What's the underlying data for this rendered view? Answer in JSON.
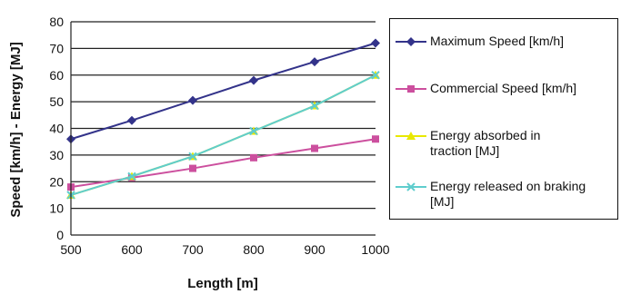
{
  "chart_data": {
    "type": "line",
    "x": [
      500,
      600,
      700,
      800,
      900,
      1000
    ],
    "series": [
      {
        "name": "Maximum Speed [km/h]",
        "values": [
          36,
          43,
          50.5,
          58,
          65,
          72
        ],
        "color": "#33338a",
        "marker": "diamond"
      },
      {
        "name": "Commercial Speed [km/h]",
        "values": [
          18,
          21.5,
          25,
          29,
          32.5,
          36
        ],
        "color": "#cc4f9e",
        "marker": "square"
      },
      {
        "name": "Energy absorbed in\ntraction [MJ]",
        "values": [
          15,
          22,
          29.5,
          39,
          48.5,
          60
        ],
        "color": "#e8e800",
        "marker": "triangle"
      },
      {
        "name": "Energy released on braking\n[MJ]",
        "values": [
          15,
          22,
          29.5,
          39,
          48.5,
          60
        ],
        "color": "#5fcdcd",
        "marker": "x"
      }
    ],
    "xlabel": "Length [m]",
    "ylabel": "Speed [km/h] - Energy [MJ]",
    "xlim": [
      500,
      1000
    ],
    "ylim": [
      0,
      80
    ],
    "xticks": [
      500,
      600,
      700,
      800,
      900,
      1000
    ],
    "yticks": [
      0,
      10,
      20,
      30,
      40,
      50,
      60,
      70,
      80
    ],
    "grid": "horizontal",
    "legend_position": "right"
  }
}
